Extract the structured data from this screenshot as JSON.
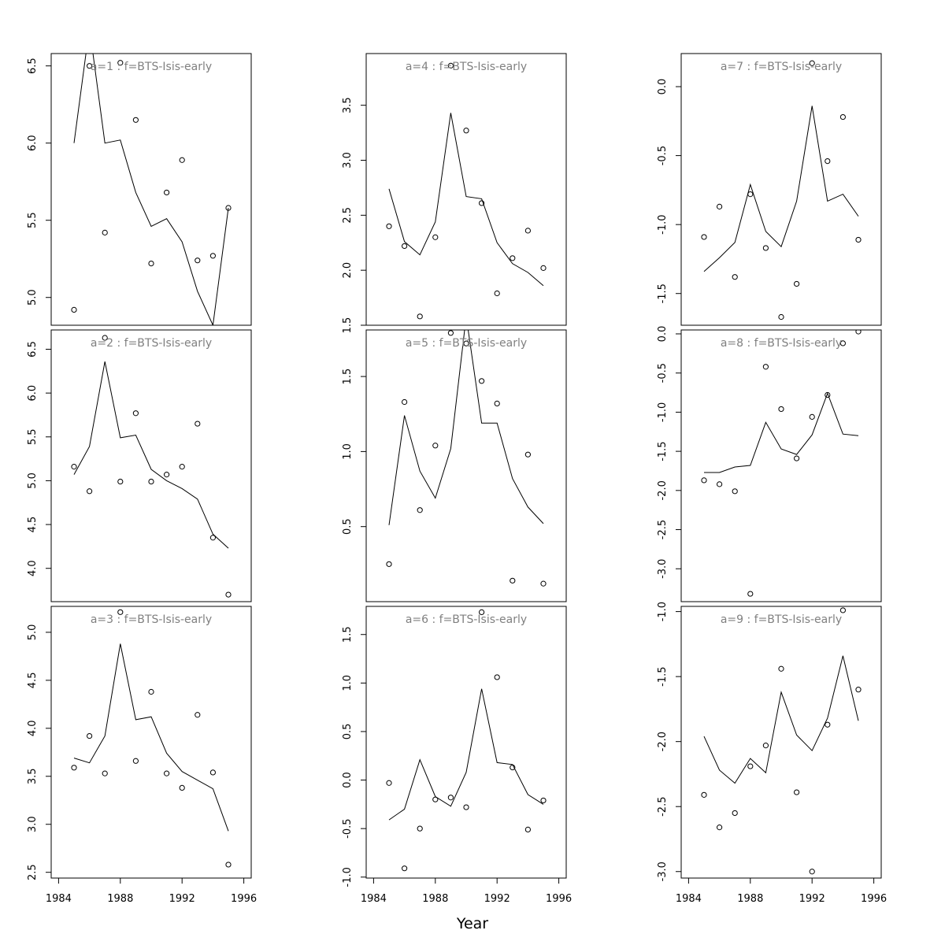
{
  "xlabel": "Year",
  "chart_data": [
    {
      "type": "line",
      "title": "a=1  :  f=BTS-Isis-early",
      "xlim": [
        1984,
        1996
      ],
      "ylim": [
        4.82,
        6.58
      ],
      "yticks": [
        5.0,
        5.5,
        6.0,
        6.5
      ],
      "yticklabels": [
        "5.0",
        "5.5",
        "6.0",
        "6.5"
      ],
      "xticks": [
        1984,
        1988,
        1992,
        1996
      ],
      "xticklabels": [
        "1984",
        "1988",
        "1992",
        "1996"
      ],
      "show_xaxis": false,
      "x": [
        1985,
        1986,
        1987,
        1988,
        1989,
        1990,
        1991,
        1992,
        1993,
        1994,
        1995
      ],
      "observed": [
        4.92,
        6.5,
        5.42,
        6.52,
        6.15,
        5.22,
        5.68,
        5.89,
        5.24,
        5.27,
        5.58
      ],
      "fitted": [
        6.0,
        6.75,
        6.0,
        6.02,
        5.68,
        5.46,
        5.51,
        5.36,
        5.04,
        4.82,
        5.58
      ]
    },
    {
      "type": "line",
      "title": "a=2  :  f=BTS-Isis-early",
      "xlim": [
        1984,
        1996
      ],
      "ylim": [
        3.62,
        6.72
      ],
      "yticks": [
        4.0,
        4.5,
        5.0,
        5.5,
        6.0,
        6.5
      ],
      "yticklabels": [
        "4.0",
        "4.5",
        "5.0",
        "5.5",
        "6.0",
        "6.5"
      ],
      "xticks": [
        1984,
        1988,
        1992,
        1996
      ],
      "xticklabels": [
        "1984",
        "1988",
        "1992",
        "1996"
      ],
      "show_xaxis": false,
      "x": [
        1985,
        1986,
        1987,
        1988,
        1989,
        1990,
        1991,
        1992,
        1993,
        1994,
        1995
      ],
      "observed": [
        5.16,
        4.88,
        6.63,
        4.99,
        5.77,
        4.99,
        5.07,
        5.16,
        5.65,
        4.35,
        3.7
      ],
      "fitted": [
        5.07,
        5.39,
        6.36,
        5.49,
        5.52,
        5.13,
        5.0,
        4.91,
        4.79,
        4.39,
        4.23
      ]
    },
    {
      "type": "line",
      "title": "a=3  :  f=BTS-Isis-early",
      "xlim": [
        1984,
        1996
      ],
      "ylim": [
        2.44,
        5.27
      ],
      "yticks": [
        2.5,
        3.0,
        3.5,
        4.0,
        4.5,
        5.0
      ],
      "yticklabels": [
        "2.5",
        "3.0",
        "3.5",
        "4.0",
        "4.5",
        "5.0"
      ],
      "xticks": [
        1984,
        1988,
        1992,
        1996
      ],
      "xticklabels": [
        "1984",
        "1988",
        "1992",
        "1996"
      ],
      "show_xaxis": true,
      "x": [
        1985,
        1986,
        1987,
        1988,
        1989,
        1990,
        1991,
        1992,
        1993,
        1994,
        1995
      ],
      "observed": [
        3.59,
        3.92,
        3.53,
        5.21,
        3.66,
        4.38,
        3.53,
        3.38,
        4.14,
        3.54,
        2.58
      ],
      "fitted": [
        3.69,
        3.64,
        3.92,
        4.88,
        4.09,
        4.12,
        3.74,
        3.55,
        3.46,
        3.37,
        2.93
      ]
    },
    {
      "type": "line",
      "title": "a=4  :  f=BTS-Isis-early",
      "xlim": [
        1984,
        1996
      ],
      "ylim": [
        1.5,
        3.97
      ],
      "yticks": [
        1.5,
        2.0,
        2.5,
        3.0,
        3.5
      ],
      "yticklabels": [
        "1.5",
        "2.0",
        "2.5",
        "3.0",
        "3.5"
      ],
      "xticks": [
        1984,
        1988,
        1992,
        1996
      ],
      "xticklabels": [
        "1984",
        "1988",
        "1992",
        "1996"
      ],
      "show_xaxis": false,
      "x": [
        1985,
        1986,
        1987,
        1988,
        1989,
        1990,
        1991,
        1992,
        1993,
        1994,
        1995
      ],
      "observed": [
        2.4,
        2.22,
        1.58,
        2.3,
        3.86,
        3.27,
        2.61,
        1.79,
        2.11,
        2.36,
        2.02
      ],
      "fitted": [
        2.74,
        2.26,
        2.14,
        2.44,
        3.43,
        2.67,
        2.65,
        2.25,
        2.06,
        1.98,
        1.86
      ]
    },
    {
      "type": "line",
      "title": "a=5  :  f=BTS-Isis-early",
      "xlim": [
        1984,
        1996
      ],
      "ylim": [
        0.0,
        1.81
      ],
      "yticks": [
        0.5,
        1.0,
        1.5
      ],
      "yticklabels": [
        "0.5",
        "1.0",
        "1.5"
      ],
      "xticks": [
        1984,
        1988,
        1992,
        1996
      ],
      "xticklabels": [
        "1984",
        "1988",
        "1992",
        "1996"
      ],
      "show_xaxis": false,
      "x": [
        1985,
        1986,
        1987,
        1988,
        1989,
        1990,
        1991,
        1992,
        1993,
        1994,
        1995
      ],
      "observed": [
        0.25,
        1.33,
        0.61,
        1.04,
        1.79,
        1.72,
        1.47,
        1.32,
        0.14,
        0.98,
        0.12
      ],
      "fitted": [
        0.51,
        1.24,
        0.87,
        0.69,
        1.02,
        1.9,
        1.19,
        1.19,
        0.82,
        0.63,
        0.52
      ]
    },
    {
      "type": "line",
      "title": "a=6  :  f=BTS-Isis-early",
      "xlim": [
        1984,
        1996
      ],
      "ylim": [
        -1.01,
        1.79
      ],
      "yticks": [
        -1.0,
        -0.5,
        0.0,
        0.5,
        1.0,
        1.5
      ],
      "yticklabels": [
        "-1.0",
        "-0.5",
        "0.0",
        "0.5",
        "1.0",
        "1.5"
      ],
      "xticks": [
        1984,
        1988,
        1992,
        1996
      ],
      "xticklabels": [
        "1984",
        "1988",
        "1992",
        "1996"
      ],
      "show_xaxis": true,
      "x": [
        1985,
        1986,
        1987,
        1988,
        1989,
        1990,
        1991,
        1992,
        1993,
        1994,
        1995
      ],
      "observed": [
        -0.03,
        -0.91,
        -0.5,
        -0.2,
        -0.18,
        -0.28,
        1.73,
        1.06,
        0.13,
        -0.51,
        -0.21
      ],
      "fitted": [
        -0.41,
        -0.3,
        0.21,
        -0.17,
        -0.27,
        0.08,
        0.94,
        0.18,
        0.16,
        -0.15,
        -0.25
      ]
    },
    {
      "type": "line",
      "title": "a=7  :  f=BTS-Isis-early",
      "xlim": [
        1984,
        1996
      ],
      "ylim": [
        -1.73,
        0.24
      ],
      "yticks": [
        -1.5,
        -1.0,
        -0.5,
        0.0
      ],
      "yticklabels": [
        "-1.5",
        "-1.0",
        "-0.5",
        "0.0"
      ],
      "xticks": [
        1984,
        1988,
        1992,
        1996
      ],
      "xticklabels": [
        "1984",
        "1988",
        "1992",
        "1996"
      ],
      "show_xaxis": false,
      "x": [
        1985,
        1986,
        1987,
        1988,
        1989,
        1990,
        1991,
        1992,
        1993,
        1994,
        1995
      ],
      "observed": [
        -1.09,
        -0.87,
        -1.38,
        -0.78,
        -1.17,
        -1.67,
        -1.43,
        0.17,
        -0.54,
        -0.22,
        -1.11
      ],
      "fitted": [
        -1.34,
        -1.24,
        -1.13,
        -0.71,
        -1.05,
        -1.16,
        -0.83,
        -0.14,
        -0.83,
        -0.78,
        -0.94
      ]
    },
    {
      "type": "line",
      "title": "a=8  :  f=BTS-Isis-early",
      "xlim": [
        1984,
        1996
      ],
      "ylim": [
        -3.42,
        0.05
      ],
      "yticks": [
        -3.0,
        -2.5,
        -2.0,
        -1.5,
        -1.0,
        -0.5,
        0.0
      ],
      "yticklabels": [
        "-3.0",
        "-2.5",
        "-2.0",
        "-1.5",
        "-1.0",
        "-0.5",
        "0.0"
      ],
      "xticks": [
        1984,
        1988,
        1992,
        1996
      ],
      "xticklabels": [
        "1984",
        "1988",
        "1992",
        "1996"
      ],
      "show_xaxis": false,
      "x": [
        1985,
        1986,
        1987,
        1988,
        1989,
        1990,
        1991,
        1992,
        1993,
        1994,
        1995
      ],
      "observed": [
        -1.87,
        -1.92,
        -2.01,
        -3.32,
        -0.42,
        -0.96,
        -1.59,
        -1.06,
        -0.78,
        -0.12,
        0.03
      ],
      "fitted": [
        -1.77,
        -1.77,
        -1.7,
        -1.68,
        -1.13,
        -1.47,
        -1.54,
        -1.29,
        -0.76,
        -1.28,
        -1.3
      ]
    },
    {
      "type": "line",
      "title": "a=9  :  f=BTS-Isis-early",
      "xlim": [
        1984,
        1996
      ],
      "ylim": [
        -3.05,
        -0.96
      ],
      "yticks": [
        -3.0,
        -2.5,
        -2.0,
        -1.5,
        -1.0
      ],
      "yticklabels": [
        "-3.0",
        "-2.5",
        "-2.0",
        "-1.5",
        "-1.0"
      ],
      "xticks": [
        1984,
        1988,
        1992,
        1996
      ],
      "xticklabels": [
        "1984",
        "1988",
        "1992",
        "1996"
      ],
      "show_xaxis": true,
      "x": [
        1985,
        1986,
        1987,
        1988,
        1989,
        1990,
        1991,
        1992,
        1993,
        1994,
        1995
      ],
      "observed": [
        -2.41,
        -2.66,
        -2.55,
        -2.19,
        -2.03,
        -1.44,
        -2.39,
        -3.0,
        -1.87,
        -0.99,
        -1.6
      ],
      "fitted": [
        -1.96,
        -2.22,
        -2.32,
        -2.13,
        -2.24,
        -1.62,
        -1.95,
        -2.07,
        -1.82,
        -1.34,
        -1.84
      ]
    }
  ]
}
